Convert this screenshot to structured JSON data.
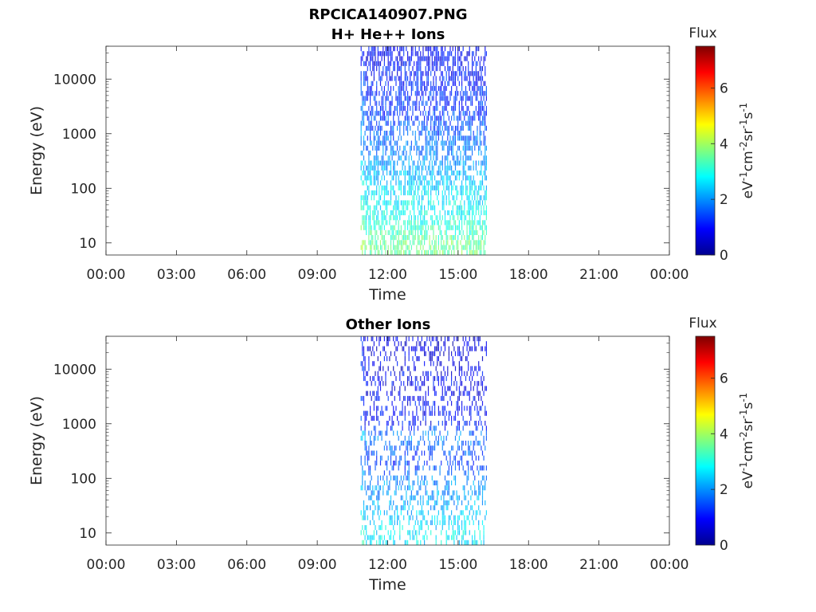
{
  "figure": {
    "title": "RPCICA140907.PNG",
    "x_tick_labels": [
      "00:00",
      "03:00",
      "06:00",
      "09:00",
      "12:00",
      "15:00",
      "18:00",
      "21:00",
      "00:00"
    ],
    "y_tick_labels": [
      "10",
      "100",
      "1000",
      "10000"
    ]
  },
  "chart_data": [
    {
      "type": "heatmap",
      "title": "H+ He++ Ions",
      "xlabel": "Time",
      "ylabel": "Energy (eV)",
      "x_unit": "hours",
      "xlim": [
        0,
        24
      ],
      "ylim": [
        6,
        40000
      ],
      "y_scale": "log",
      "x_ticks": [
        0,
        3,
        6,
        9,
        12,
        15,
        18,
        21,
        24
      ],
      "y_ticks": [
        10,
        100,
        1000,
        10000
      ],
      "grid": false,
      "data_time_range": [
        10.85,
        16.2
      ],
      "colorbar": {
        "title": "Flux",
        "label": "eV-1cm-2sr-1s-1",
        "range": [
          0,
          7.5
        ],
        "ticks": [
          "0",
          "2",
          "4",
          "6"
        ],
        "colormap": "jet"
      },
      "flux_by_energy": [
        {
          "energy": 10,
          "flux": 3.6
        },
        {
          "energy": 30,
          "flux": 2.9
        },
        {
          "energy": 100,
          "flux": 2.6
        },
        {
          "energy": 300,
          "flux": 2.0
        },
        {
          "energy": 1000,
          "flux": 1.6
        },
        {
          "energy": 3000,
          "flux": 1.3
        },
        {
          "energy": 10000,
          "flux": 1.1
        },
        {
          "energy": 30000,
          "flux": 0.9
        }
      ]
    },
    {
      "type": "heatmap",
      "title": "Other Ions",
      "xlabel": "Time",
      "ylabel": "Energy (eV)",
      "x_unit": "hours",
      "xlim": [
        0,
        24
      ],
      "ylim": [
        6,
        40000
      ],
      "y_scale": "log",
      "x_ticks": [
        0,
        3,
        6,
        9,
        12,
        15,
        18,
        21,
        24
      ],
      "y_ticks": [
        10,
        100,
        1000,
        10000
      ],
      "grid": false,
      "data_time_range": [
        10.85,
        16.2
      ],
      "colorbar": {
        "title": "Flux",
        "label": "eV-1cm-2sr-1s-1",
        "range": [
          0,
          7.5
        ],
        "ticks": [
          "0",
          "2",
          "4",
          "6"
        ],
        "colormap": "jet"
      },
      "flux_by_energy": [
        {
          "energy": 10,
          "flux": 2.7
        },
        {
          "energy": 30,
          "flux": 2.2
        },
        {
          "energy": 100,
          "flux": 1.9
        },
        {
          "energy": 200,
          "flux": 1.3
        },
        {
          "energy": 600,
          "flux": 2.0
        },
        {
          "energy": 1000,
          "flux": 1.0
        },
        {
          "energy": 10000,
          "flux": 0.8
        },
        {
          "energy": 30000,
          "flux": 0.7
        }
      ]
    }
  ]
}
